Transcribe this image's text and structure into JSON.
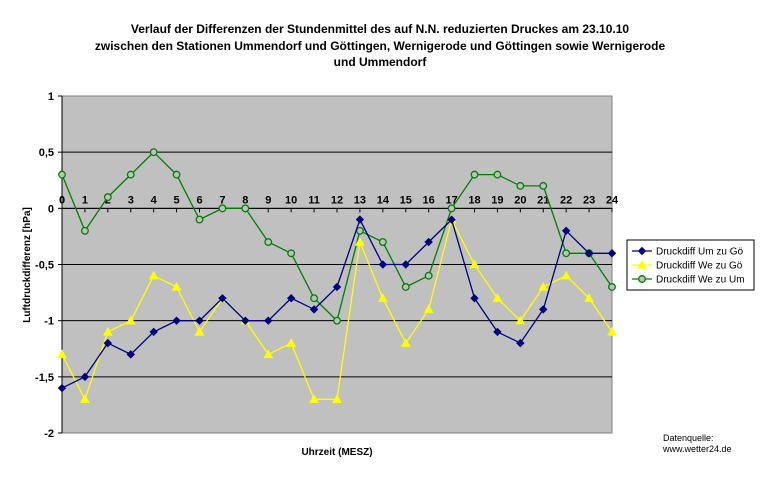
{
  "chart_data": {
    "type": "line",
    "title_lines": [
      "Verlauf der Differenzen der Stundenmittel des auf N.N. reduzierten Druckes am 23.10.10",
      "zwischen den Stationen Ummendorf und Göttingen, Wernigerode und Göttingen sowie Wernigerode",
      "und Ummendorf"
    ],
    "xlabel": "Uhrzeit (MESZ)",
    "ylabel": "Luftdruckdifferenz [hPa]",
    "x": [
      0,
      1,
      2,
      3,
      4,
      5,
      6,
      7,
      8,
      9,
      10,
      11,
      12,
      13,
      14,
      15,
      16,
      17,
      18,
      19,
      20,
      21,
      22,
      23,
      24
    ],
    "x_tick_labels": [
      "0",
      "1",
      "2",
      "3",
      "4",
      "5",
      "6",
      "7",
      "8",
      "9",
      "10",
      "11",
      "12",
      "13",
      "14",
      "15",
      "16",
      "17",
      "18",
      "19",
      "20",
      "21",
      "22",
      "23",
      "24"
    ],
    "y_tick_labels": [
      "1",
      "0,5",
      "0",
      "-0,5",
      "-1",
      "-1,5",
      "-2"
    ],
    "y_ticks": [
      1,
      0.5,
      0,
      -0.5,
      -1,
      -1.5,
      -2
    ],
    "ylim": [
      -2,
      1
    ],
    "xlim": [
      0,
      24
    ],
    "grid": "horizontal",
    "legend_position": "right",
    "background": "#c0c0c0",
    "series": [
      {
        "name": "Druckdiff Um zu Gö",
        "color": "#000080",
        "marker": "diamond-filled",
        "values": [
          -1.6,
          -1.5,
          -1.2,
          -1.3,
          -1.1,
          -1.0,
          -1.0,
          -0.8,
          -1.0,
          -1.0,
          -0.8,
          -0.9,
          -0.7,
          -0.1,
          -0.5,
          -0.5,
          -0.3,
          -0.1,
          -0.8,
          -1.1,
          -1.2,
          -0.9,
          -0.2,
          -0.4,
          -0.4
        ]
      },
      {
        "name": "Druckdiff We zu Gö",
        "color": "#ffff00",
        "marker": "triangle-filled",
        "values": [
          -1.3,
          -1.7,
          -1.1,
          -1.0,
          -0.6,
          -0.7,
          -1.1,
          -0.8,
          -1.0,
          -1.3,
          -1.2,
          -1.7,
          -1.7,
          -0.3,
          -0.8,
          -1.2,
          -0.9,
          -0.1,
          -0.5,
          -0.8,
          -1.0,
          -0.7,
          -0.6,
          -0.8,
          -1.1
        ]
      },
      {
        "name": "Druckdiff We zu Um",
        "color": "#008000",
        "marker": "circle-open",
        "values": [
          0.3,
          -0.2,
          0.1,
          0.3,
          0.5,
          0.3,
          -0.1,
          0.0,
          0.0,
          -0.3,
          -0.4,
          -0.8,
          -1.0,
          -0.2,
          -0.3,
          -0.7,
          -0.6,
          0.0,
          0.3,
          0.3,
          0.2,
          0.2,
          -0.4,
          -0.4,
          -0.7
        ]
      }
    ],
    "source_lines": [
      "Datenquelle:",
      "www.wetter24.de"
    ]
  }
}
